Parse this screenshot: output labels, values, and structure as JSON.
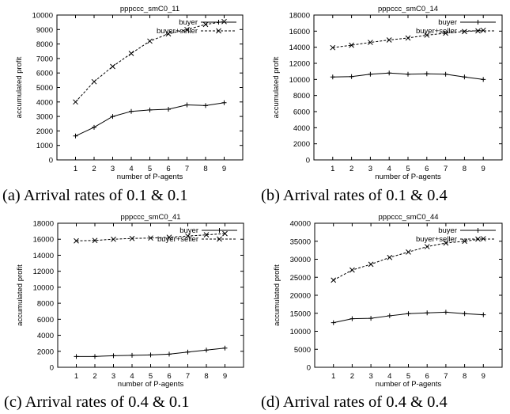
{
  "chart_data": [
    {
      "type": "line",
      "title": "pppccc_smC0_11",
      "caption": "(a) Arrival rates of 0.1 & 0.1",
      "xlabel": "number of P-agents",
      "ylabel": "accumulated profit",
      "x": [
        1,
        2,
        3,
        4,
        5,
        6,
        7,
        8,
        9
      ],
      "xlim": [
        0,
        10
      ],
      "ylim": [
        0,
        10000
      ],
      "yticks": [
        0,
        1000,
        2000,
        3000,
        4000,
        5000,
        6000,
        7000,
        8000,
        9000,
        10000
      ],
      "legend": "top-right",
      "series": [
        {
          "name": "buyer",
          "style": "solid",
          "marker": "plus",
          "values": [
            1650,
            2250,
            3000,
            3350,
            3450,
            3500,
            3800,
            3750,
            3950
          ]
        },
        {
          "name": "buyer+seller",
          "style": "dashed",
          "marker": "cross",
          "values": [
            4000,
            5400,
            6450,
            7350,
            8200,
            8700,
            9000,
            9350,
            9550
          ]
        }
      ]
    },
    {
      "type": "line",
      "title": "pppccc_smC0_14",
      "caption": "(b) Arrival rates of 0.1 & 0.4",
      "xlabel": "number of P-agents",
      "ylabel": "accumulated profit",
      "x": [
        1,
        2,
        3,
        4,
        5,
        6,
        7,
        8,
        9
      ],
      "xlim": [
        0,
        10
      ],
      "ylim": [
        0,
        18000
      ],
      "yticks": [
        0,
        2000,
        4000,
        6000,
        8000,
        10000,
        12000,
        14000,
        16000,
        18000
      ],
      "legend": "top-right",
      "series": [
        {
          "name": "buyer",
          "style": "solid",
          "marker": "plus",
          "values": [
            10300,
            10350,
            10650,
            10800,
            10650,
            10700,
            10650,
            10300,
            10000
          ]
        },
        {
          "name": "buyer+seller",
          "style": "dashed",
          "marker": "cross",
          "values": [
            13950,
            14250,
            14600,
            14900,
            15150,
            15500,
            15750,
            15950,
            16100
          ]
        }
      ]
    },
    {
      "type": "line",
      "title": "pppccc_smC0_41",
      "caption": "(c) Arrival rates of 0.4 & 0.1",
      "xlabel": "number of P-agents",
      "ylabel": "accumulated profit",
      "x": [
        1,
        2,
        3,
        4,
        5,
        6,
        7,
        8,
        9
      ],
      "xlim": [
        0,
        10
      ],
      "ylim": [
        0,
        18000
      ],
      "yticks": [
        0,
        2000,
        4000,
        6000,
        8000,
        10000,
        12000,
        14000,
        16000,
        18000
      ],
      "legend": "top-right",
      "series": [
        {
          "name": "buyer",
          "style": "solid",
          "marker": "plus",
          "values": [
            1350,
            1350,
            1450,
            1500,
            1550,
            1650,
            1900,
            2150,
            2400
          ]
        },
        {
          "name": "buyer+seller",
          "style": "dashed",
          "marker": "cross",
          "values": [
            15800,
            15850,
            16000,
            16100,
            16150,
            16250,
            16400,
            16550,
            16700
          ]
        }
      ]
    },
    {
      "type": "line",
      "title": "pppccc_smC0_44",
      "caption": "(d) Arrival rates of 0.4 & 0.4",
      "xlabel": "number of P-agents",
      "ylabel": "accumulated profit",
      "x": [
        1,
        2,
        3,
        4,
        5,
        6,
        7,
        8,
        9
      ],
      "xlim": [
        0,
        10
      ],
      "ylim": [
        0,
        40000
      ],
      "yticks": [
        0,
        5000,
        10000,
        15000,
        20000,
        25000,
        30000,
        35000,
        40000
      ],
      "legend": "top-right",
      "series": [
        {
          "name": "buyer",
          "style": "solid",
          "marker": "plus",
          "values": [
            12400,
            13500,
            13600,
            14300,
            14900,
            15100,
            15300,
            14900,
            14600
          ]
        },
        {
          "name": "buyer+seller",
          "style": "dashed",
          "marker": "cross",
          "values": [
            24200,
            27000,
            28600,
            30500,
            32000,
            33500,
            34500,
            35000,
            35700
          ]
        }
      ]
    }
  ]
}
